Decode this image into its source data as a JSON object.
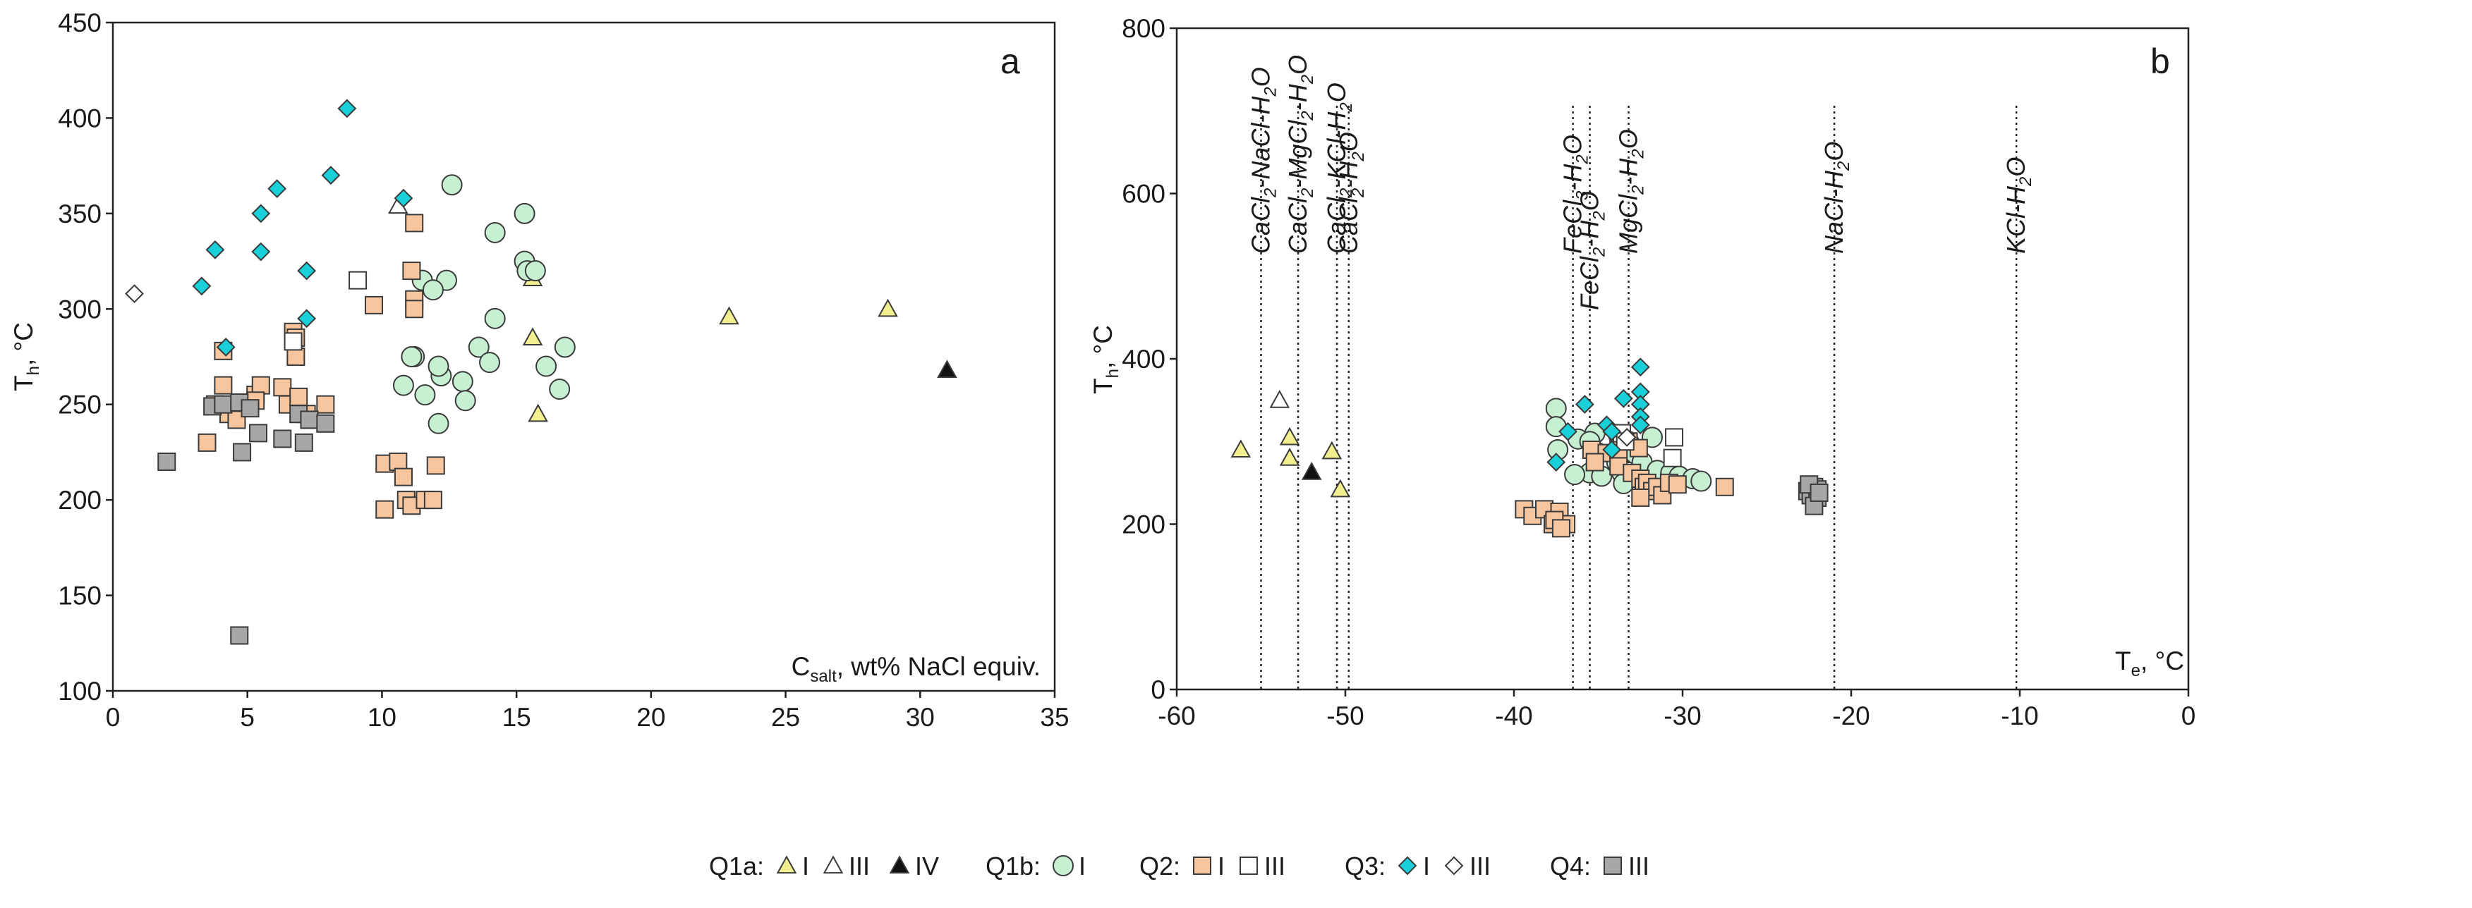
{
  "colors": {
    "q1_fill": "#f1ef8f",
    "q1b_fill": "#c7efd2",
    "q2_fill": "#f8c69e",
    "q3_fill": "#19d0d8",
    "q4_fill": "#a7a7a7",
    "white": "#ffffff",
    "black": "#111111",
    "stroke": "#3a3a3a"
  },
  "legend": {
    "groups": [
      {
        "label": "Q1a:",
        "items": [
          {
            "label": "I",
            "symbol": "triangle",
            "fill": "#f1ef8f"
          },
          {
            "label": "III",
            "symbol": "triangle",
            "fill": "#ffffff"
          },
          {
            "label": "IV",
            "symbol": "triangle",
            "fill": "#111111"
          }
        ]
      },
      {
        "label": "Q1b:",
        "items": [
          {
            "label": "I",
            "symbol": "circle",
            "fill": "#c7efd2"
          }
        ]
      },
      {
        "label": "Q2:",
        "items": [
          {
            "label": "I",
            "symbol": "square",
            "fill": "#f8c69e"
          },
          {
            "label": "III",
            "symbol": "square",
            "fill": "#ffffff"
          }
        ]
      },
      {
        "label": "Q3:",
        "items": [
          {
            "label": "I",
            "symbol": "diamond",
            "fill": "#19d0d8"
          },
          {
            "label": "III",
            "symbol": "diamond",
            "fill": "#ffffff"
          }
        ]
      },
      {
        "label": "Q4:",
        "items": [
          {
            "label": "III",
            "symbol": "square",
            "fill": "#a7a7a7"
          }
        ]
      }
    ]
  },
  "chart_data": [
    {
      "type": "scatter",
      "panel": "a",
      "title": "",
      "xlabel": "C_salt, wt% NaCl equiv.",
      "xlabel_parts": [
        "C",
        "salt",
        ", wt% NaCl equiv."
      ],
      "ylabel": "T_h, °C",
      "ylabel_parts": [
        "T",
        "h",
        ", °C"
      ],
      "xlim": [
        0,
        35
      ],
      "ylim": [
        100,
        450
      ],
      "xticks": [
        0,
        5,
        10,
        15,
        20,
        25,
        30,
        35
      ],
      "yticks": [
        100,
        150,
        200,
        250,
        300,
        350,
        400,
        450
      ],
      "series": [
        {
          "name": "Q1a I",
          "symbol": "triangle",
          "fill": "#f1ef8f",
          "points": [
            [
              15.6,
              316
            ],
            [
              15.6,
              285
            ],
            [
              15.8,
              245
            ],
            [
              22.9,
              296
            ],
            [
              28.8,
              300
            ]
          ]
        },
        {
          "name": "Q1a III",
          "symbol": "triangle",
          "fill": "#ffffff",
          "points": [
            [
              10.6,
              354
            ]
          ]
        },
        {
          "name": "Q1a IV",
          "symbol": "triangle",
          "fill": "#111111",
          "points": [
            [
              31,
              268
            ]
          ]
        },
        {
          "name": "Q1b I",
          "symbol": "circle",
          "fill": "#c7efd2",
          "points": [
            [
              12.6,
              365
            ],
            [
              15.3,
              350
            ],
            [
              14.2,
              340
            ],
            [
              15.3,
              325
            ],
            [
              15.4,
              320
            ],
            [
              15.7,
              320
            ],
            [
              11.5,
              315
            ],
            [
              12.4,
              315
            ],
            [
              11.9,
              310
            ],
            [
              14.2,
              295
            ],
            [
              11.2,
              275
            ],
            [
              11.1,
              275
            ],
            [
              13.6,
              280
            ],
            [
              16.8,
              280
            ],
            [
              13,
              262
            ],
            [
              12.2,
              265
            ],
            [
              12.1,
              270
            ],
            [
              14,
              272
            ],
            [
              16.1,
              270
            ],
            [
              10.8,
              260
            ],
            [
              11.6,
              255
            ],
            [
              13.1,
              252
            ],
            [
              16.6,
              258
            ],
            [
              12.1,
              240
            ]
          ]
        },
        {
          "name": "Q2 I",
          "symbol": "square",
          "fill": "#f8c69e",
          "points": [
            [
              11.2,
              345
            ],
            [
              11.1,
              320
            ],
            [
              11.2,
              305
            ],
            [
              11.2,
              300
            ],
            [
              9.7,
              302
            ],
            [
              6.7,
              288
            ],
            [
              6.8,
              285
            ],
            [
              6.8,
              275
            ],
            [
              4.1,
              278
            ],
            [
              3.5,
              230
            ],
            [
              3.8,
              250
            ],
            [
              4.1,
              260
            ],
            [
              4.3,
              245
            ],
            [
              4.6,
              242
            ],
            [
              5.3,
              255
            ],
            [
              5.5,
              260
            ],
            [
              5.3,
              252
            ],
            [
              6.3,
              259
            ],
            [
              6.5,
              250
            ],
            [
              6.9,
              254
            ],
            [
              7.2,
              245
            ],
            [
              7.9,
              250
            ],
            [
              10.1,
              219
            ],
            [
              10.6,
              220
            ],
            [
              10.8,
              212
            ],
            [
              10.1,
              195
            ],
            [
              10.9,
              200
            ],
            [
              11.1,
              197
            ],
            [
              11.6,
              200
            ],
            [
              12,
              218
            ],
            [
              11.9,
              200
            ]
          ]
        },
        {
          "name": "Q2 III",
          "symbol": "square",
          "fill": "#ffffff",
          "points": [
            [
              9.1,
              315
            ],
            [
              6.7,
              283
            ]
          ]
        },
        {
          "name": "Q3 I",
          "symbol": "diamond",
          "fill": "#19d0d8",
          "points": [
            [
              8.7,
              405
            ],
            [
              8.1,
              370
            ],
            [
              6.1,
              363
            ],
            [
              10.8,
              358
            ],
            [
              5.5,
              350
            ],
            [
              3.8,
              331
            ],
            [
              5.5,
              330
            ],
            [
              7.2,
              320
            ],
            [
              3.3,
              312
            ],
            [
              7.2,
              295
            ],
            [
              4.2,
              280
            ]
          ]
        },
        {
          "name": "Q3 III",
          "symbol": "diamond",
          "fill": "#ffffff",
          "points": [
            [
              0.8,
              308
            ]
          ]
        },
        {
          "name": "Q4 III",
          "symbol": "square",
          "fill": "#a7a7a7",
          "points": [
            [
              2,
              220
            ],
            [
              3.7,
              249
            ],
            [
              4.1,
              250
            ],
            [
              4.7,
              251
            ],
            [
              5.1,
              248
            ],
            [
              4.8,
              225
            ],
            [
              5.4,
              235
            ],
            [
              6.3,
              232
            ],
            [
              6.9,
              245
            ],
            [
              7.1,
              230
            ],
            [
              7.3,
              242
            ],
            [
              7.9,
              240
            ],
            [
              4.7,
              129
            ]
          ]
        }
      ]
    },
    {
      "type": "scatter",
      "panel": "b",
      "title": "",
      "xlabel": "T_e, °C",
      "xlabel_parts": [
        "T",
        "e",
        ", °C"
      ],
      "ylabel": "T_h, °C",
      "ylabel_parts": [
        "T",
        "h",
        ", °C"
      ],
      "xlim": [
        -60,
        0
      ],
      "ylim": [
        0,
        800
      ],
      "xticks": [
        -60,
        -50,
        -40,
        -30,
        -20,
        -10,
        0
      ],
      "yticks": [
        0,
        200,
        400,
        600,
        800
      ],
      "eutectic_lines": [
        {
          "x": -55,
          "label": "CaCl2-NaCl-H2O",
          "parts": [
            "CaCl",
            "2",
            "-NaCl-H",
            "2",
            "O"
          ]
        },
        {
          "x": -52.8,
          "label": "CaCl2-MgCl2-H2O",
          "parts": [
            "CaCl",
            "2",
            "-MgCl",
            "2",
            "-H",
            "2",
            "O"
          ]
        },
        {
          "x": -50.5,
          "label": "CaCl2-KCl-H2O",
          "parts": [
            "CaCl",
            "2",
            "-KCl-H",
            "2",
            "O"
          ]
        },
        {
          "x": -49.8,
          "label": "CaCl2-H2O",
          "parts": [
            "CaCl",
            "2",
            "-H",
            "2",
            "O"
          ]
        },
        {
          "x": -36.5,
          "label": "FeCl3-H2O",
          "parts": [
            "FeCl",
            "3",
            "-H",
            "2",
            "O"
          ]
        },
        {
          "x": -35.5,
          "label": "FeCl2-H2O",
          "parts": [
            "FeCl",
            "2",
            "-H",
            "2",
            "O"
          ]
        },
        {
          "x": -33.2,
          "label": "MgCl2-H2O",
          "parts": [
            "MgCl",
            "2",
            "-H",
            "2",
            "O"
          ]
        },
        {
          "x": -21,
          "label": "NaCl-H2O",
          "parts": [
            "NaCl-H",
            "2",
            "O"
          ]
        },
        {
          "x": -10.2,
          "label": "KCl-H2O",
          "parts": [
            "KCl-H",
            "2",
            "O"
          ]
        }
      ],
      "series": [
        {
          "name": "Q1a I",
          "symbol": "triangle",
          "fill": "#f1ef8f",
          "points": [
            [
              -56.2,
              290
            ],
            [
              -53.3,
              305
            ],
            [
              -53.3,
              280
            ],
            [
              -50.8,
              288
            ],
            [
              -50.3,
              242
            ]
          ]
        },
        {
          "name": "Q1a III",
          "symbol": "triangle",
          "fill": "#ffffff",
          "points": [
            [
              -53.9,
              350
            ]
          ]
        },
        {
          "name": "Q1a IV",
          "symbol": "triangle",
          "fill": "#111111",
          "points": [
            [
              -52,
              263
            ]
          ]
        },
        {
          "name": "Q1b I",
          "symbol": "circle",
          "fill": "#c7efd2",
          "points": [
            [
              -37.5,
              340
            ],
            [
              -37.5,
              318
            ],
            [
              -37.4,
              290
            ],
            [
              -36.2,
              303
            ],
            [
              -35.2,
              310
            ],
            [
              -35.5,
              300
            ],
            [
              -35,
              286
            ],
            [
              -33.8,
              308
            ],
            [
              -33.2,
              300
            ],
            [
              -33.9,
              275
            ],
            [
              -33.6,
              262
            ],
            [
              -32.8,
              285
            ],
            [
              -32.4,
              275
            ],
            [
              -31.8,
              305
            ],
            [
              -31.5,
              265
            ],
            [
              -35.5,
              262
            ],
            [
              -34.8,
              258
            ],
            [
              -33.5,
              249
            ],
            [
              -30.7,
              262
            ],
            [
              -30.2,
              258
            ],
            [
              -29.4,
              255
            ],
            [
              -28.9,
              252
            ],
            [
              -36.4,
              260
            ]
          ]
        },
        {
          "name": "Q2 I",
          "symbol": "square",
          "fill": "#f8c69e",
          "points": [
            [
              -39.4,
              218
            ],
            [
              -38.9,
              210
            ],
            [
              -38.2,
              218
            ],
            [
              -37.7,
              200
            ],
            [
              -37.3,
              215
            ],
            [
              -36.9,
              200
            ],
            [
              -37.6,
              205
            ],
            [
              -37.2,
              195
            ],
            [
              -35.4,
              290
            ],
            [
              -34.5,
              286
            ],
            [
              -35.2,
              275
            ],
            [
              -33.8,
              290
            ],
            [
              -33.8,
              270
            ],
            [
              -33.2,
              300
            ],
            [
              -32.6,
              292
            ],
            [
              -33,
              262
            ],
            [
              -32.5,
              255
            ],
            [
              -32.3,
              245
            ],
            [
              -32.1,
              250
            ],
            [
              -31.8,
              240
            ],
            [
              -31.5,
              245
            ],
            [
              -31.2,
              235
            ],
            [
              -30.8,
              250
            ],
            [
              -30.3,
              248
            ],
            [
              -27.5,
              245
            ],
            [
              -32.5,
              232
            ]
          ]
        },
        {
          "name": "Q2 III",
          "symbol": "square",
          "fill": "#ffffff",
          "points": [
            [
              -33.6,
              310
            ],
            [
              -33.4,
              300
            ],
            [
              -30.5,
              305
            ],
            [
              -30.6,
              280
            ]
          ]
        },
        {
          "name": "Q3 I",
          "symbol": "diamond",
          "fill": "#19d0d8",
          "points": [
            [
              -32.5,
              390
            ],
            [
              -32.5,
              360
            ],
            [
              -32.5,
              345
            ],
            [
              -32.5,
              330
            ],
            [
              -32.5,
              320
            ],
            [
              -33.5,
              352
            ],
            [
              -35.8,
              345
            ],
            [
              -36.8,
              312
            ],
            [
              -34.5,
              320
            ],
            [
              -34.2,
              312
            ],
            [
              -34.2,
              290
            ],
            [
              -37.5,
              275
            ]
          ]
        },
        {
          "name": "Q3 III",
          "symbol": "diamond",
          "fill": "#ffffff",
          "points": [
            [
              -33.3,
              305
            ]
          ]
        },
        {
          "name": "Q4 III",
          "symbol": "square",
          "fill": "#a7a7a7",
          "points": [
            [
              -22.2,
              245
            ],
            [
              -22.6,
              240
            ],
            [
              -22,
              242
            ],
            [
              -22.4,
              235
            ],
            [
              -22,
              232
            ],
            [
              -22.2,
              222
            ],
            [
              -22.5,
              248
            ],
            [
              -21.9,
              238
            ]
          ]
        }
      ]
    }
  ]
}
